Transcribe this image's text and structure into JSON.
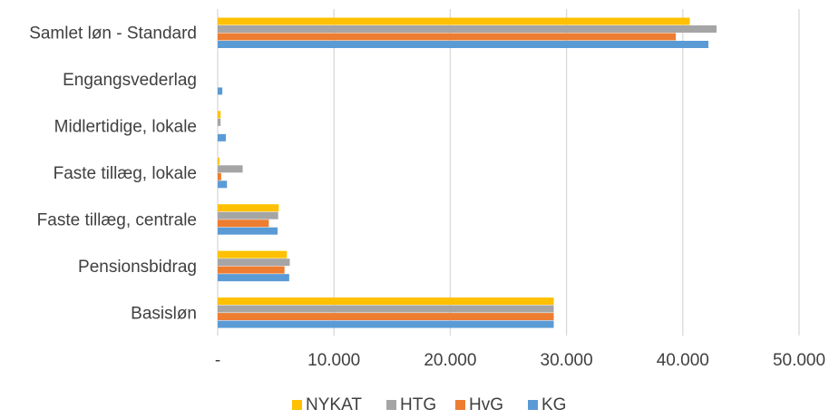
{
  "chart_data": {
    "type": "bar",
    "orientation": "horizontal",
    "categories": [
      "Samlet løn - Standard",
      "Engangsvederlag",
      "Midlertidige, lokale",
      "Faste tillæg, lokale",
      "Faste tillæg, centrale",
      "Pensionsbidrag",
      "Basisløn"
    ],
    "series": [
      {
        "name": "NYKAT",
        "color": "#FFC000",
        "values": [
          40600,
          0,
          250,
          150,
          5250,
          5950,
          28900
        ]
      },
      {
        "name": "HTG",
        "color": "#A5A5A5",
        "values": [
          42900,
          0,
          250,
          2150,
          5200,
          6200,
          28900
        ]
      },
      {
        "name": "HvG",
        "color": "#ED7D31",
        "values": [
          39400,
          0,
          0,
          300,
          4400,
          5750,
          28900
        ]
      },
      {
        "name": "KG",
        "color": "#5B9BD5",
        "values": [
          42200,
          400,
          700,
          800,
          5150,
          6150,
          28900
        ]
      }
    ],
    "xlim": [
      0,
      50000
    ],
    "ticks": [
      {
        "value": 0,
        "label": "-"
      },
      {
        "value": 10000,
        "label": "10.000"
      },
      {
        "value": 20000,
        "label": "20.000"
      },
      {
        "value": 30000,
        "label": "30.000"
      },
      {
        "value": 40000,
        "label": "40.000"
      },
      {
        "value": 50000,
        "label": "50.000"
      }
    ],
    "grid": true,
    "legend_position": "bottom",
    "gridline_color": "#D9D9D9"
  }
}
